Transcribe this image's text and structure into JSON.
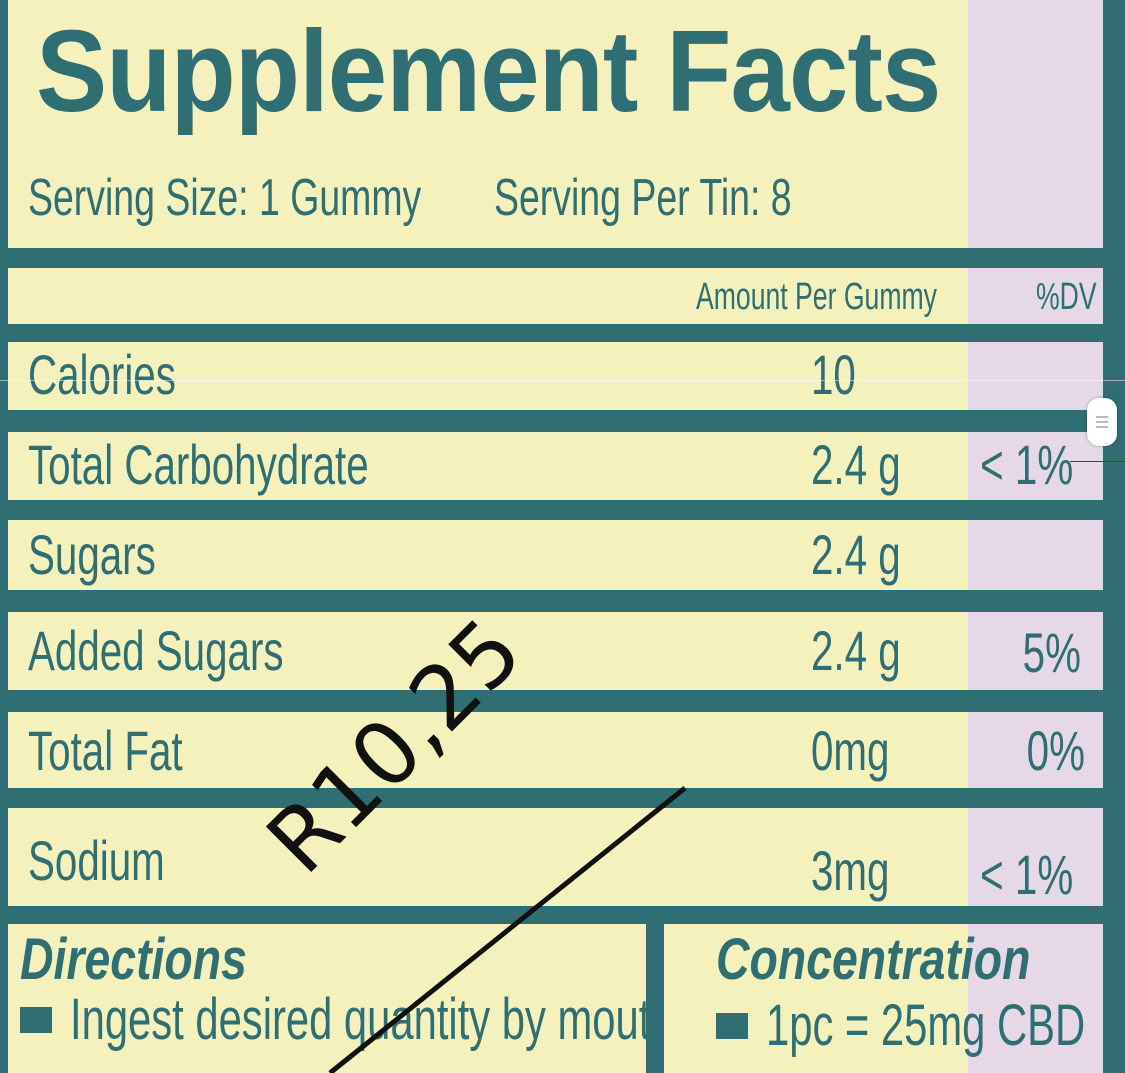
{
  "title": "Supplement Facts",
  "serving_size": "Serving Size: 1 Gummy",
  "servings_per_tin": "Serving Per Tin: 8",
  "table": {
    "col_amount": "Amount Per Gummy",
    "col_dv": "%DV",
    "rows": [
      {
        "label": "Calories",
        "amount": "10",
        "dv": ""
      },
      {
        "label": "Total Carbohydrate",
        "amount": "2.4 g",
        "dv": "< 1%"
      },
      {
        "label": "Sugars",
        "amount": "2.4 g",
        "dv": ""
      },
      {
        "label": "Added Sugars",
        "amount": "2.4 g",
        "dv": "5%"
      },
      {
        "label": "Total Fat",
        "amount": "0mg",
        "dv": "0%"
      },
      {
        "label": "Sodium",
        "amount": "3mg",
        "dv": "< 1%"
      }
    ]
  },
  "directions": {
    "heading": "Directions",
    "text": "Ingest desired quantity by mouth."
  },
  "concentration": {
    "heading": "Concentration",
    "text": "1pc = 25mg CBD"
  },
  "handwritten_annotation": "R10,25",
  "colors": {
    "background_border": "#2f6f73",
    "panel": "#f4f1bd",
    "dv_column": "#e6d8e6",
    "text": "#2f6f73"
  }
}
